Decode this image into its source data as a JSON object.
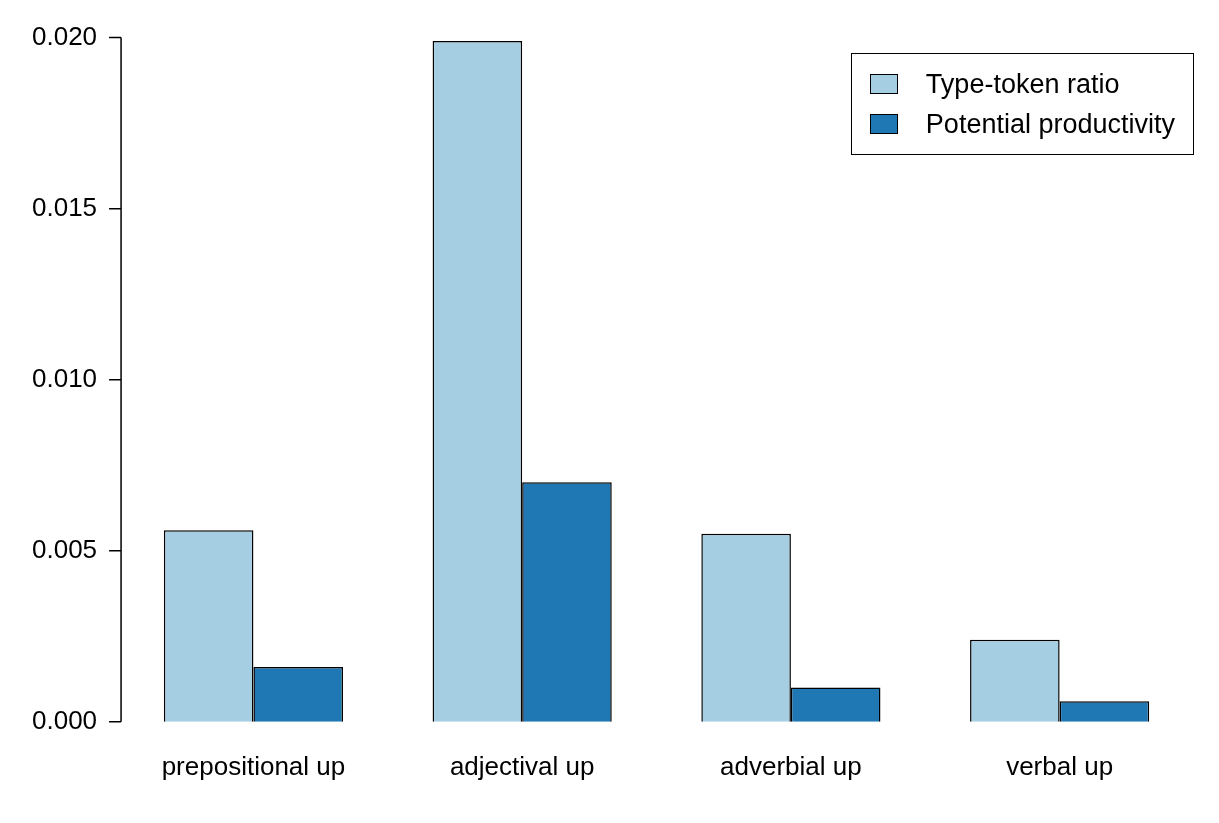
{
  "chart_data": {
    "type": "bar",
    "categories": [
      "prepositional up",
      "adjectival up",
      "adverbial up",
      "verbal up"
    ],
    "series": [
      {
        "name": "Type-token ratio",
        "color": "#a6cee3",
        "values": [
          0.0056,
          0.0199,
          0.0055,
          0.0024
        ]
      },
      {
        "name": "Potential productivity",
        "color": "#1f78b4",
        "values": [
          0.0016,
          0.007,
          0.001,
          0.0006
        ]
      }
    ],
    "ylim": [
      0,
      0.02
    ],
    "yticks": [
      {
        "value": 0,
        "label": "0.000"
      },
      {
        "value": 0.005,
        "label": "0.005"
      },
      {
        "value": 0.01,
        "label": "0.010"
      },
      {
        "value": 0.015,
        "label": "0.015"
      },
      {
        "value": 0.02,
        "label": "0.020"
      }
    ],
    "grid": false,
    "legend": "top right"
  }
}
